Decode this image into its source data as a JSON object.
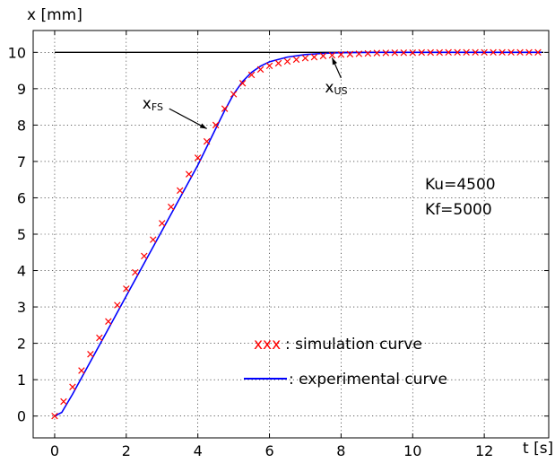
{
  "chart_data": {
    "type": "line",
    "ylabel": "x [mm]",
    "xlabel": "t [s]",
    "xlim": [
      -0.6,
      13.8
    ],
    "ylim": [
      -0.6,
      10.6
    ],
    "xticks": [
      0,
      2,
      4,
      6,
      8,
      10,
      12
    ],
    "yticks": [
      0,
      1,
      2,
      3,
      4,
      5,
      6,
      7,
      8,
      9,
      10
    ],
    "grid": true,
    "reference_line": {
      "y": 10,
      "color": "#000000"
    },
    "series": [
      {
        "name": "simulation curve",
        "marker": "x",
        "color": "#ff0000",
        "x": [
          0,
          0.25,
          0.5,
          0.75,
          1,
          1.25,
          1.5,
          1.75,
          2,
          2.25,
          2.5,
          2.75,
          3,
          3.25,
          3.5,
          3.75,
          4,
          4.25,
          4.5,
          4.75,
          5,
          5.25,
          5.5,
          5.75,
          6,
          6.25,
          6.5,
          6.75,
          7,
          7.25,
          7.5,
          7.75,
          8,
          8.25,
          8.5,
          8.75,
          9,
          9.25,
          9.5,
          9.75,
          10,
          10.25,
          10.5,
          10.75,
          11,
          11.25,
          11.5,
          11.75,
          12,
          12.25,
          12.5,
          12.75,
          13,
          13.25,
          13.5
        ],
        "y": [
          0,
          0.4,
          0.8,
          1.25,
          1.7,
          2.15,
          2.6,
          3.05,
          3.5,
          3.95,
          4.4,
          4.85,
          5.3,
          5.75,
          6.2,
          6.65,
          7.1,
          7.55,
          8.0,
          8.45,
          8.85,
          9.15,
          9.38,
          9.53,
          9.63,
          9.7,
          9.75,
          9.8,
          9.84,
          9.87,
          9.9,
          9.92,
          9.94,
          9.95,
          9.96,
          9.97,
          9.98,
          9.985,
          9.99,
          9.99,
          9.99,
          9.995,
          9.995,
          9.995,
          10,
          10,
          10,
          10,
          10,
          10,
          10,
          10,
          10,
          10,
          10
        ]
      },
      {
        "name": "experimental curve",
        "marker": "none",
        "color": "#0000ff",
        "x": [
          0,
          0.2,
          0.5,
          1,
          1.5,
          2,
          2.5,
          3,
          3.5,
          4,
          4.5,
          4.75,
          5,
          5.25,
          5.5,
          5.75,
          6,
          6.5,
          7,
          7.5,
          8,
          9,
          10,
          11,
          12,
          13,
          13.6
        ],
        "y": [
          0,
          0.1,
          0.6,
          1.5,
          2.4,
          3.3,
          4.2,
          5.1,
          6.0,
          6.9,
          7.9,
          8.4,
          8.85,
          9.2,
          9.45,
          9.62,
          9.74,
          9.87,
          9.94,
          9.97,
          9.99,
          10,
          10,
          10,
          10,
          10,
          10
        ]
      }
    ],
    "annotations": [
      {
        "text": "x",
        "sub": "fs",
        "label_x": 3.0,
        "label_y": 8.55,
        "arrow_to_x": 4.25,
        "arrow_to_y": 7.9
      },
      {
        "text": "x",
        "sub": "us",
        "label_x": 8.1,
        "label_y": 9.0,
        "arrow_to_x": 7.75,
        "arrow_to_y": 9.85
      }
    ],
    "params": [
      "Ku=4500",
      "Kf=5000"
    ],
    "legend": {
      "location": "bottom-right",
      "entries": [
        {
          "symbol": "xxx",
          "label": ": simulation curve",
          "color": "#ff0000"
        },
        {
          "symbol": "line",
          "label": ": experimental curve",
          "color": "#0000ff"
        }
      ]
    }
  }
}
